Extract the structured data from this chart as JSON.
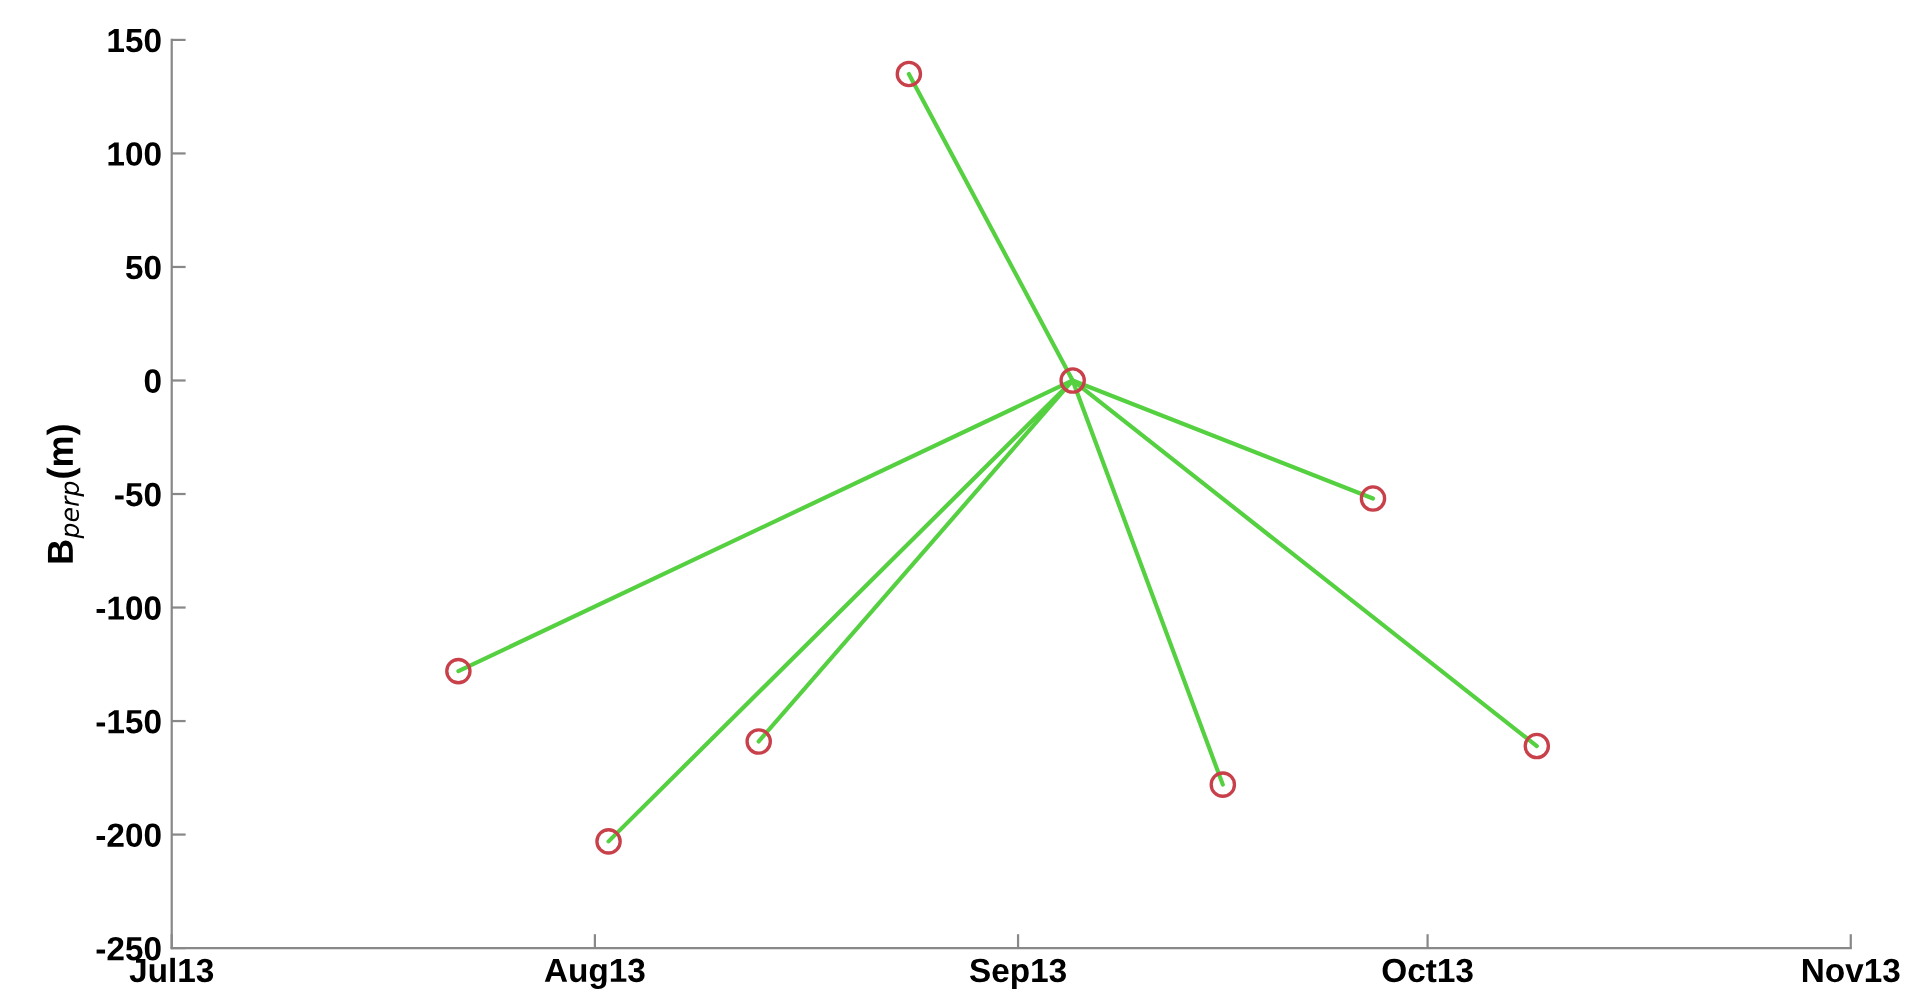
{
  "chart_data": {
    "type": "line",
    "ylabel": "B$_{perp}$(m)",
    "xlim": [
      "2013-07-01",
      "2013-11-01"
    ],
    "xticks": [
      {
        "value": "2013-07-01",
        "label": "Jul13"
      },
      {
        "value": "2013-08-01",
        "label": "Aug13"
      },
      {
        "value": "2013-09-01",
        "label": "Sep13"
      },
      {
        "value": "2013-10-01",
        "label": "Oct13"
      },
      {
        "value": "2013-11-01",
        "label": "Nov13"
      }
    ],
    "ylim": [
      -250,
      150
    ],
    "yticks": [
      -250,
      -200,
      -150,
      -100,
      -50,
      0,
      50,
      100,
      150
    ],
    "grid": false,
    "marker": "none",
    "line_style": "solid",
    "series": [
      {
        "color": "#55d040",
        "x": [
          "2013-09-05",
          "2013-07-22"
        ],
        "values": [
          0,
          -128
        ]
      },
      {
        "color": "#55d040",
        "x": [
          "2013-09-05",
          "2013-08-02"
        ],
        "values": [
          0,
          -203
        ]
      },
      {
        "color": "#55d040",
        "x": [
          "2013-09-05",
          "2013-08-13"
        ],
        "values": [
          0,
          -159
        ]
      },
      {
        "color": "#55d040",
        "x": [
          "2013-09-05",
          "2013-08-24"
        ],
        "values": [
          0,
          135
        ]
      },
      {
        "color": "#55d040",
        "x": [
          "2013-09-05",
          "2013-09-16"
        ],
        "values": [
          0,
          -178
        ]
      },
      {
        "color": "#55d040",
        "x": [
          "2013-09-05",
          "2013-09-27"
        ],
        "values": [
          0,
          -52
        ]
      },
      {
        "color": "#55d040",
        "x": [
          "2013-09-05",
          "2013-10-09"
        ],
        "values": [
          0,
          -161
        ]
      },
      {
        "type": "scatter",
        "color": "#c8404a",
        "marker": "circle",
        "x": [
          "2013-07-22",
          "2013-08-02",
          "2013-08-13",
          "2013-08-24",
          "2013-09-05",
          "2013-09-16",
          "2013-09-27",
          "2013-10-09"
        ],
        "values": [
          -128,
          -203,
          -159,
          135,
          0,
          -178,
          -52,
          -161
        ]
      }
    ]
  }
}
